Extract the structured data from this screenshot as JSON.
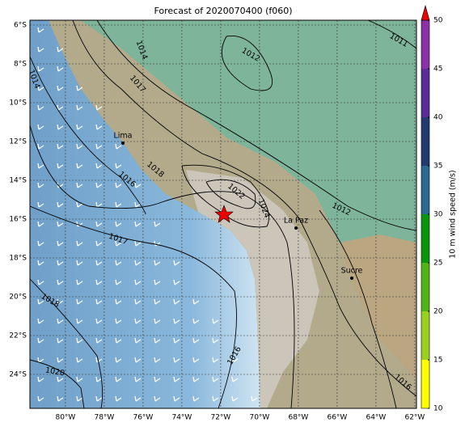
{
  "title": "Forecast of 2020070400 (f060)",
  "lon_ticks": [
    {
      "value": -80,
      "label": "80°W"
    },
    {
      "value": -78,
      "label": "78°W"
    },
    {
      "value": -76,
      "label": "76°W"
    },
    {
      "value": -74,
      "label": "74°W"
    },
    {
      "value": -72,
      "label": "72°W"
    },
    {
      "value": -70,
      "label": "70°W"
    },
    {
      "value": -68,
      "label": "68°W"
    },
    {
      "value": -66,
      "label": "66°W"
    },
    {
      "value": -64,
      "label": "64°W"
    },
    {
      "value": -62,
      "label": "62°W"
    }
  ],
  "lat_ticks": [
    {
      "value": -6,
      "label": "6°S"
    },
    {
      "value": -8,
      "label": "8°S"
    },
    {
      "value": -10,
      "label": "10°S"
    },
    {
      "value": -12,
      "label": "12°S"
    },
    {
      "value": -14,
      "label": "14°S"
    },
    {
      "value": -16,
      "label": "16°S"
    },
    {
      "value": -18,
      "label": "18°S"
    },
    {
      "value": -20,
      "label": "20°S"
    },
    {
      "value": -22,
      "label": "22°S"
    },
    {
      "value": -24,
      "label": "24°S"
    }
  ],
  "cities": [
    "Lima",
    "La Paz",
    "Sucre"
  ],
  "contour_labels": [
    "1011",
    "1012",
    "1014",
    "1014",
    "1017",
    "1016",
    "1018",
    "1022",
    "1024",
    "1012",
    "1017",
    "1018",
    "1020",
    "1016",
    "1016"
  ],
  "colorbar": {
    "label": "10 m wind speed (m/s)",
    "ticks": [
      10,
      15,
      20,
      25,
      30,
      35,
      40,
      45,
      50
    ],
    "colors": [
      "#ffff00",
      "#99d21e",
      "#50b414",
      "#0a960a",
      "#2a6a90",
      "#223a6e",
      "#5a2c98",
      "#8c30a8",
      "#b43cb4"
    ]
  }
}
